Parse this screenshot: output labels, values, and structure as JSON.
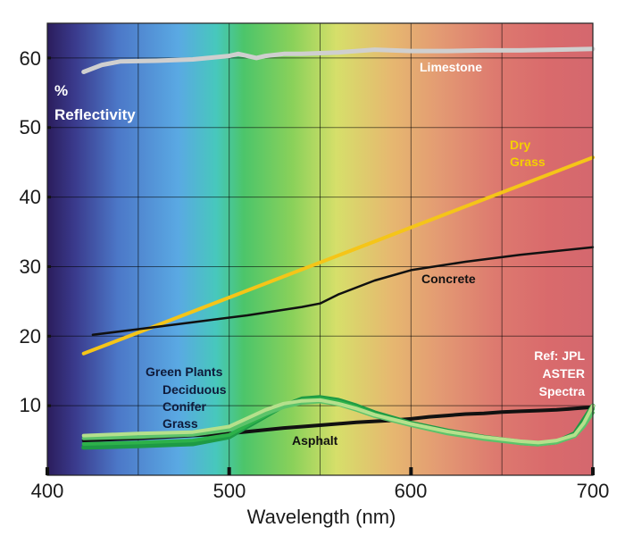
{
  "chart_data": {
    "type": "line",
    "title": "",
    "ylabel": "% Reflectivity",
    "ylabel_parts": [
      "%",
      "Reflectivity"
    ],
    "xlabel": "Wavelength (nm)",
    "xlim": [
      400,
      700
    ],
    "ylim": [
      0,
      65
    ],
    "x_ticks": [
      "400",
      "500",
      "600",
      "700"
    ],
    "y_ticks": [
      "10",
      "20",
      "30",
      "40",
      "50",
      "60"
    ],
    "grid": true,
    "colors": {
      "limestone": "#cfcfcf",
      "dry_grass": "#f5c518",
      "concrete": "#111111",
      "asphalt": "#111111",
      "green_plants": "#1e9a45",
      "deciduous": "#2db14a",
      "conifer": "#5cc36a",
      "grass": "#b5e08c"
    },
    "series": [
      {
        "name": "Limestone",
        "x": [
          420,
          430,
          440,
          460,
          480,
          500,
          505,
          510,
          515,
          520,
          530,
          540,
          560,
          580,
          600,
          620,
          640,
          660,
          680,
          700
        ],
        "y": [
          58,
          59,
          59.5,
          59.6,
          59.8,
          60.3,
          60.6,
          60.3,
          60,
          60.3,
          60.6,
          60.6,
          60.8,
          61.2,
          61,
          61,
          61.1,
          61.1,
          61.2,
          61.3
        ]
      },
      {
        "name": "Dry Grass",
        "x": [
          420,
          700
        ],
        "y": [
          17.5,
          45.7
        ]
      },
      {
        "name": "Concrete",
        "x": [
          425,
          450,
          480,
          510,
          540,
          550,
          560,
          580,
          600,
          630,
          660,
          700
        ],
        "y": [
          20.2,
          21,
          22,
          23,
          24.2,
          24.7,
          26,
          28,
          29.5,
          30.7,
          31.7,
          32.8
        ]
      },
      {
        "name": "Asphalt",
        "x": [
          420,
          450,
          500,
          530,
          550,
          570,
          590,
          600,
          610,
          620,
          630,
          640,
          650,
          660,
          670,
          680,
          690,
          700
        ],
        "y": [
          5,
          5.3,
          6,
          6.8,
          7.2,
          7.6,
          7.9,
          8.1,
          8.4,
          8.6,
          8.8,
          8.9,
          9.1,
          9.2,
          9.3,
          9.4,
          9.6,
          9.8
        ]
      },
      {
        "name": "Green Plants",
        "x": [
          420,
          450,
          480,
          500,
          510,
          520,
          530,
          540,
          550,
          560,
          570,
          580,
          600,
          620,
          640,
          660,
          670,
          680,
          690,
          695,
          700
        ],
        "y": [
          4,
          4.2,
          4.5,
          5.5,
          7,
          8.5,
          10,
          11,
          11.2,
          10.8,
          10,
          9,
          7.5,
          6.4,
          5.5,
          4.8,
          4.6,
          4.8,
          6,
          8,
          10
        ]
      },
      {
        "name": "Deciduous",
        "x": [
          420,
          450,
          480,
          500,
          510,
          520,
          530,
          540,
          550,
          560,
          570,
          580,
          600,
          620,
          640,
          660,
          670,
          680,
          690,
          695,
          700
        ],
        "y": [
          4.5,
          4.7,
          5,
          5.8,
          7.2,
          8.6,
          10,
          10.8,
          11,
          10.6,
          9.8,
          8.8,
          7.4,
          6.2,
          5.3,
          4.6,
          4.4,
          4.7,
          5.8,
          7.5,
          9.5
        ]
      },
      {
        "name": "Conifer",
        "x": [
          420,
          450,
          480,
          500,
          510,
          520,
          530,
          540,
          550,
          560,
          570,
          580,
          600,
          620,
          640,
          660,
          670,
          680,
          690,
          695,
          700
        ],
        "y": [
          5.3,
          5.5,
          5.8,
          6.5,
          7.6,
          8.8,
          9.8,
          10.4,
          10.6,
          10.2,
          9.4,
          8.5,
          7.2,
          6,
          5.2,
          4.6,
          4.4,
          4.7,
          5.6,
          7,
          9
        ]
      },
      {
        "name": "Grass",
        "x": [
          420,
          450,
          480,
          500,
          510,
          520,
          530,
          540,
          550,
          560,
          570,
          580,
          600,
          620,
          640,
          660,
          670,
          680,
          690,
          695,
          700
        ],
        "y": [
          5.7,
          6,
          6.2,
          7,
          8.2,
          9.4,
          10.3,
          10.7,
          10.8,
          10.3,
          9.6,
          8.7,
          7.4,
          6.3,
          5.5,
          4.9,
          4.7,
          5,
          5.8,
          7.5,
          10
        ]
      }
    ],
    "annotations": {
      "limestone": "Limestone",
      "dry_grass": [
        "Dry",
        "Grass"
      ],
      "concrete": "Concrete",
      "asphalt": "Asphalt",
      "vegetation": [
        "Green Plants",
        "Deciduous",
        "Conifer",
        "Grass"
      ],
      "reference": [
        "Ref:  JPL",
        "ASTER",
        "Spectra"
      ]
    }
  }
}
